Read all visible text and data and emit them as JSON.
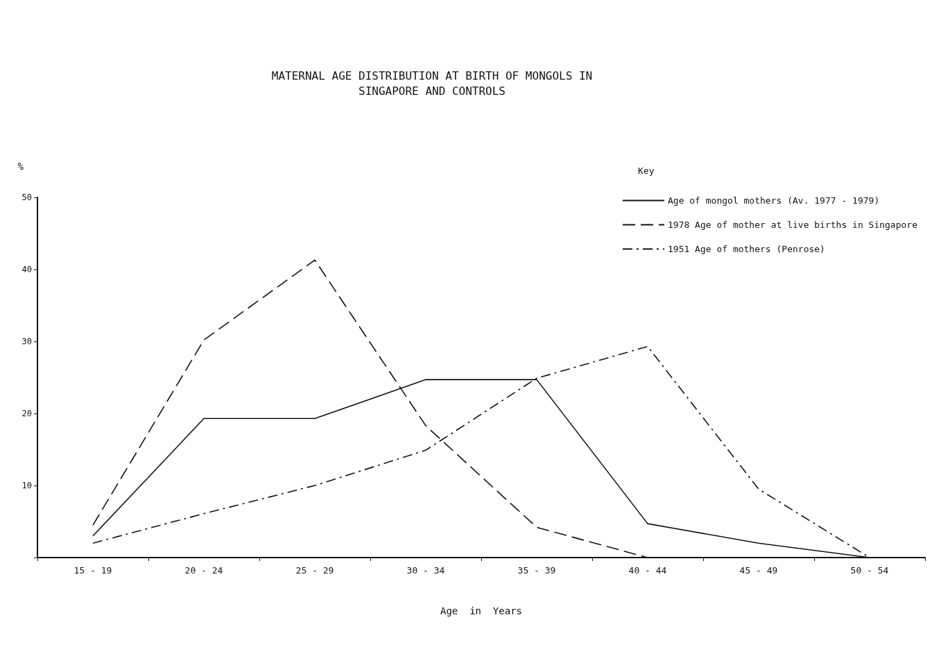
{
  "chart_data": {
    "type": "line",
    "title": "MATERNAL AGE DISTRIBUTION AT BIRTH OF MONGOLS IN\nSINGAPORE AND CONTROLS",
    "xlabel": "Age  in  Years",
    "ylabel": "%",
    "legend_title": "Key",
    "categories": [
      "15 - 19",
      "20 - 24",
      "25 - 29",
      "30 - 34",
      "35 - 39",
      "40 - 44",
      "45 - 49",
      "50 - 54"
    ],
    "series": [
      {
        "name": "Age of mongol mothers (Av. 1977 - 1979)",
        "color": "#111111",
        "line_style": "solid",
        "values": [
          3,
          19.3,
          19.3,
          24.7,
          24.7,
          4.7,
          2,
          0
        ]
      },
      {
        "name": "1978 Age of mother at live births in Singapore",
        "color": "#111111",
        "line_style": "dashed",
        "values": [
          4.5,
          30.2,
          41.3,
          18.3,
          4.2,
          0,
          0,
          null
        ]
      },
      {
        "name": "1951 Age of mothers (Penrose)",
        "color": "#111111",
        "line_style": "dashdot",
        "values": [
          2,
          6.1,
          10,
          14.9,
          24.9,
          29.3,
          9.5,
          0
        ]
      }
    ],
    "ylim": [
      0,
      50
    ],
    "yticks": [
      {
        "value": 0,
        "label": null
      },
      10,
      20,
      30,
      40,
      50
    ],
    "grid": false,
    "legend": "top right",
    "marker": "none"
  }
}
